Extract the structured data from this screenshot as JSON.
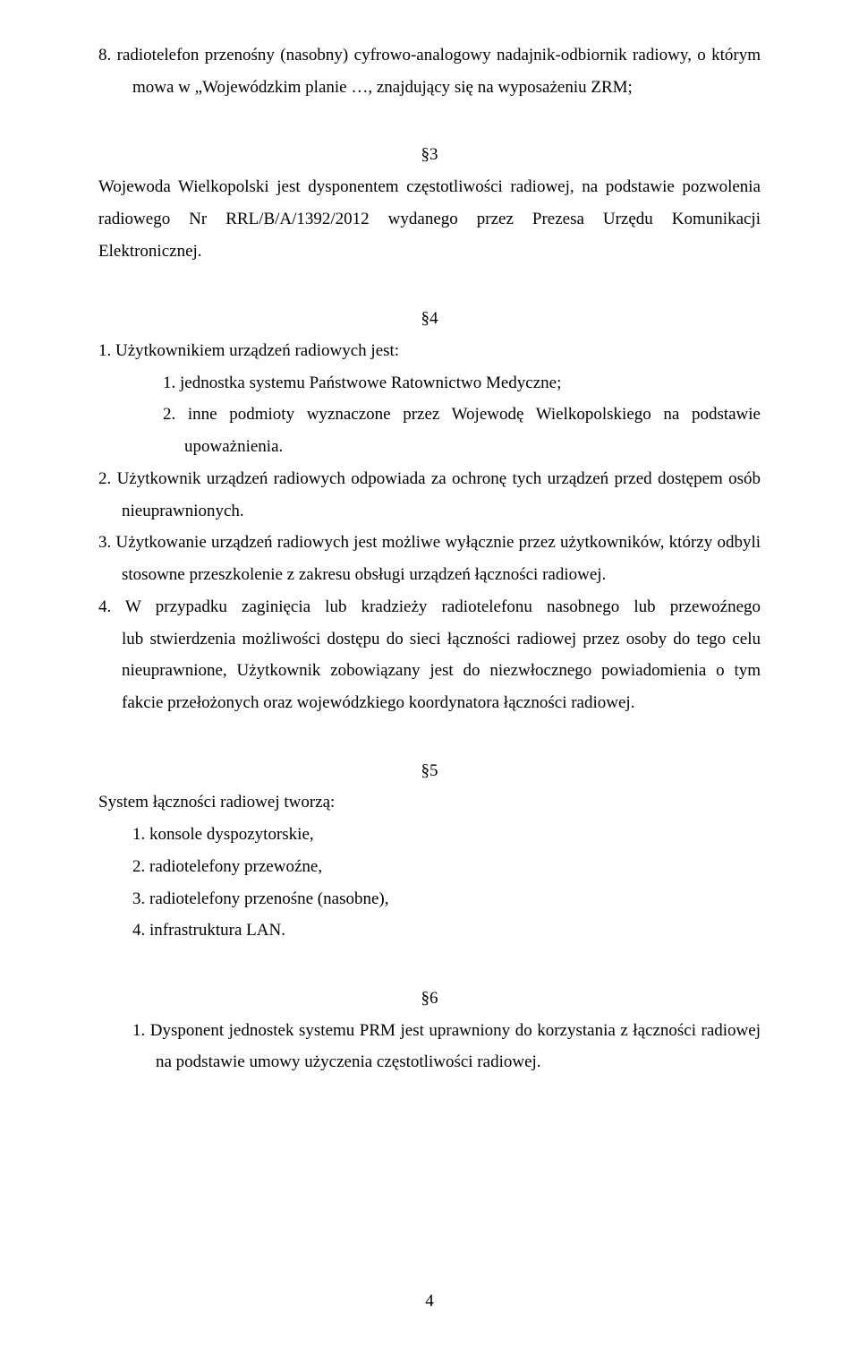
{
  "item8": "8.  radiotelefon przenośny (nasobny) cyfrowo-analogowy nadajnik-odbiornik radiowy, o którym mowa w „Wojewódzkim planie …, znajdujący się na wyposażeniu ZRM;",
  "s3": {
    "mark": "§3",
    "p": "Wojewoda Wielkopolski jest dysponentem częstotliwości radiowej, na podstawie pozwolenia radiowego Nr RRL/B/A/1392/2012 wydanego przez Prezesa Urzędu Komunikacji Elektronicznej."
  },
  "s4": {
    "mark": "§4",
    "n1": "1. Użytkownikiem urządzeń radiowych jest:",
    "n1a": "1.  jednostka systemu Państwowe Ratownictwo Medyczne;",
    "n1b": "2. inne podmioty wyznaczone przez Wojewodę Wielkopolskiego na podstawie upoważnienia.",
    "n2": "2. Użytkownik urządzeń radiowych odpowiada za ochronę tych urządzeń przed dostępem osób nieuprawnionych.",
    "n3": "3. Użytkowanie urządzeń radiowych jest możliwe wyłącznie przez użytkowników, którzy odbyli stosowne przeszkolenie z zakresu obsługi urządzeń łączności radiowej.",
    "n4": "4. W przypadku zaginięcia lub kradzieży radiotelefonu nasobnego lub przewoźnego lub stwierdzenia możliwości dostępu do sieci łączności radiowej przez osoby do tego celu nieuprawnione, Użytkownik zobowiązany jest do niezwłocznego powiadomienia o tym fakcie przełożonych oraz wojewódzkiego koordynatora łączności radiowej."
  },
  "s5": {
    "mark": "§5",
    "lead": "System łączności radiowej tworzą:",
    "i1": "1.  konsole dyspozytorskie,",
    "i2": "2.  radiotelefony przewoźne,",
    "i3": "3.  radiotelefony przenośne (nasobne),",
    "i4": "4.  infrastruktura LAN."
  },
  "s6": {
    "mark": "§6",
    "n1": "1. Dysponent jednostek systemu PRM jest uprawniony do korzystania z łączności radiowej na podstawie umowy użyczenia częstotliwości radiowej."
  },
  "pageNumber": "4"
}
